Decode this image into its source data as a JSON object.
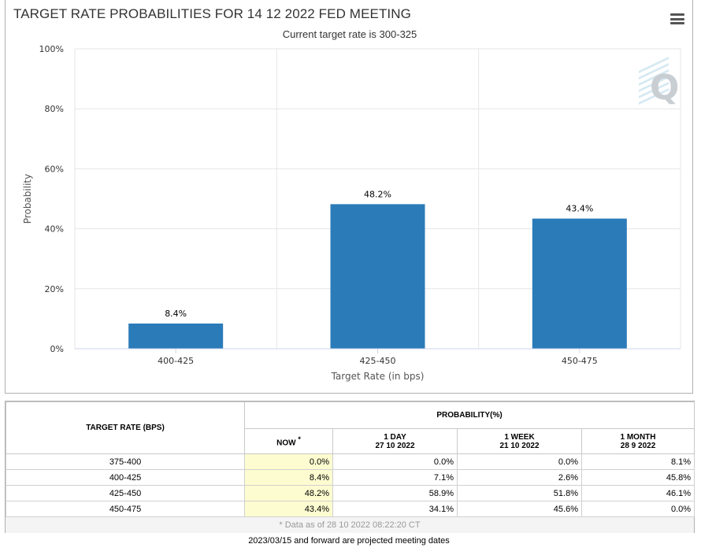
{
  "chart": {
    "menu_icon": "hamburger-menu-icon",
    "watermark_icon": "q-logo-icon"
  },
  "chart_data": {
    "type": "bar",
    "title": "TARGET RATE PROBABILITIES FOR 14 12 2022 FED MEETING",
    "subtitle": "Current target rate is 300-325",
    "xlabel": "Target Rate (in bps)",
    "ylabel": "Probability",
    "categories": [
      "400-425",
      "425-450",
      "450-475"
    ],
    "values": [
      8.4,
      48.2,
      43.4
    ],
    "data_labels": [
      "8.4%",
      "48.2%",
      "43.4%"
    ],
    "ylim": [
      0,
      100
    ],
    "yticks": [
      "0%",
      "20%",
      "40%",
      "60%",
      "80%",
      "100%"
    ],
    "ytick_values": [
      0,
      20,
      40,
      60,
      80,
      100
    ],
    "grid": true,
    "bar_color": "#2b7bb9"
  },
  "table": {
    "rate_header": "TARGET RATE (BPS)",
    "probability_header": "PROBABILITY(%)",
    "columns": [
      {
        "label": "NOW",
        "marker": "*",
        "date": ""
      },
      {
        "label": "1 DAY",
        "date": "27 10 2022"
      },
      {
        "label": "1 WEEK",
        "date": "21 10 2022"
      },
      {
        "label": "1 MONTH",
        "date": "28 9 2022"
      }
    ],
    "rows": [
      {
        "rate": "375-400",
        "values": [
          "0.0%",
          "0.0%",
          "0.0%",
          "8.1%"
        ]
      },
      {
        "rate": "400-425",
        "values": [
          "8.4%",
          "7.1%",
          "2.6%",
          "45.8%"
        ]
      },
      {
        "rate": "425-450",
        "values": [
          "48.2%",
          "58.9%",
          "51.8%",
          "46.1%"
        ]
      },
      {
        "rate": "450-475",
        "values": [
          "43.4%",
          "34.1%",
          "45.6%",
          "0.0%"
        ]
      }
    ],
    "footnote": "* Data as of 28 10 2022 08:22:20 CT",
    "now_highlight_color": "#fcfcd0"
  },
  "projected_note": "2023/03/15 and forward are projected meeting dates"
}
